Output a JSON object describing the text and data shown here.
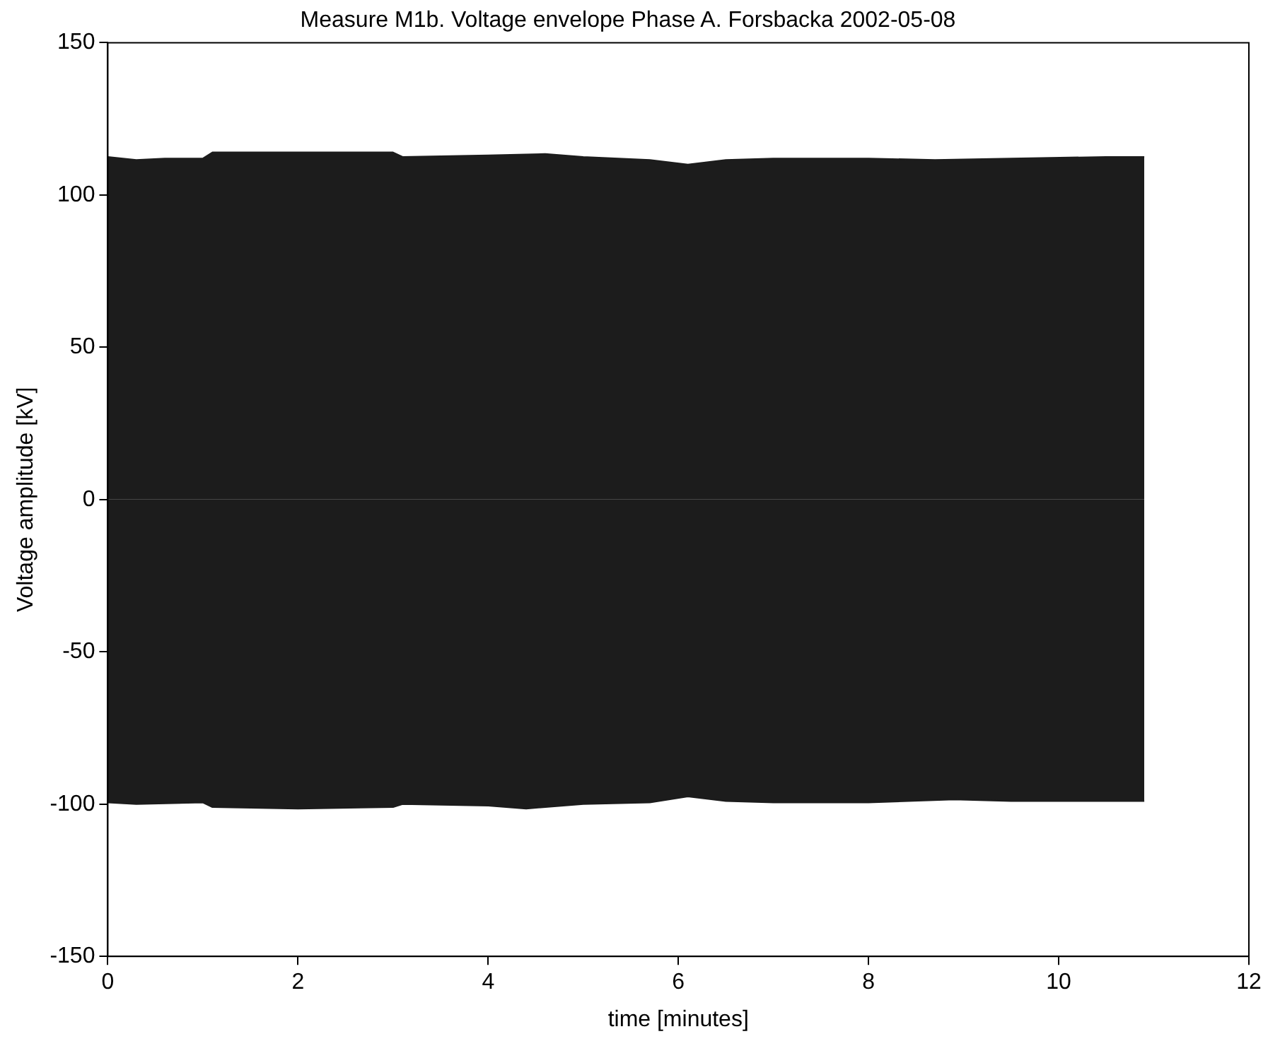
{
  "chart_data": {
    "type": "area",
    "title": "Measure M1b. Voltage envelope Phase A. Forsbacka 2002-05-08",
    "xlabel": "time [minutes]",
    "ylabel": "Voltage amplitude [kV]",
    "xlim": [
      0,
      12
    ],
    "xticks": [
      0,
      2,
      4,
      6,
      8,
      10,
      12
    ],
    "ylim": [
      -150,
      150
    ],
    "yticks": [
      -150,
      -100,
      -50,
      0,
      50,
      100,
      150
    ],
    "grid": false,
    "legend": false,
    "series": [
      {
        "color": "#1c1c1c",
        "x": [
          0,
          0.3,
          0.6,
          1.0,
          1.1,
          2.0,
          3.0,
          3.1,
          4.0,
          4.6,
          5.0,
          5.7,
          6.1,
          6.5,
          7.0,
          8.0,
          8.7,
          9.5,
          10.5,
          10.9
        ],
        "values": [
          112.5,
          111.5,
          112,
          112,
          114,
          114,
          114,
          112.5,
          113,
          113.5,
          112.5,
          111.5,
          110,
          111.5,
          112,
          112,
          111.5,
          112,
          112.5,
          112.5
        ]
      },
      {
        "color": "#1c1c1c",
        "x": [
          0,
          0.3,
          1.0,
          1.1,
          2.0,
          3.0,
          3.1,
          4.0,
          4.4,
          5.0,
          5.7,
          6.1,
          6.5,
          7.0,
          8.0,
          8.9,
          9.5,
          10.5,
          10.9
        ],
        "values": [
          -99.5,
          -100,
          -99.5,
          -101,
          -101.5,
          -101,
          -100,
          -100.5,
          -101.5,
          -100,
          -99.5,
          -97.5,
          -99,
          -99.5,
          -99.5,
          -98.5,
          -99,
          -99,
          -99
        ]
      }
    ]
  }
}
